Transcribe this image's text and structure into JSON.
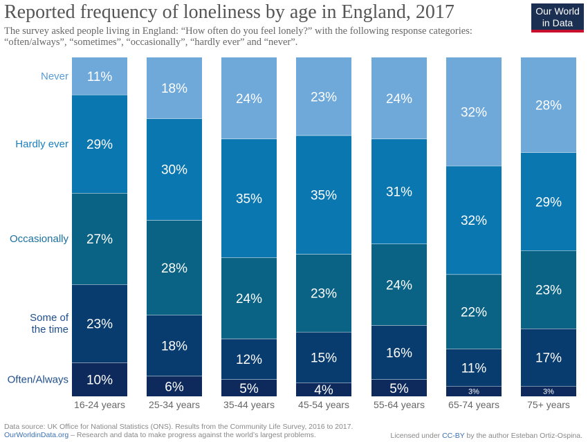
{
  "title": "Reported frequency of loneliness by age in England, 2017",
  "subtitle": "The survey asked people living in England: “How often do you feel lonely?” with the following response categories: “often/always”, “sometimes”, “occasionally”, “hardly ever” and “never”.",
  "logo": {
    "line1": "Our World",
    "line2": "in Data"
  },
  "footer": {
    "source": "Data source: UK Office for National Statistics (ONS). Results from the Community Life Survey, 2016 to 2017.",
    "site": "OurWorldinData.org",
    "tagline": " – Research and data to make progress against the world’s largest problems.",
    "license_prefix": "Licensed under ",
    "license": "CC-BY",
    "license_suffix": " by the author Esteban Ortiz-Ospina."
  },
  "chart_data": {
    "type": "bar",
    "stacked": true,
    "percent": true,
    "categories": [
      "16-24 years",
      "25-34 years",
      "35-44 years",
      "45-54 years",
      "55-64 years",
      "65-74 years",
      "75+ years"
    ],
    "series": [
      {
        "name": "Often/Always",
        "values": [
          10,
          6,
          5,
          4,
          5,
          3,
          3
        ],
        "color": "#0e2a5c",
        "label_color": "#1f4e8c"
      },
      {
        "name": "Some of the time",
        "values": [
          23,
          18,
          12,
          15,
          16,
          11,
          17
        ],
        "color": "#083b6e",
        "label_color": "#1f4e8c"
      },
      {
        "name": "Occasionally",
        "values": [
          27,
          28,
          24,
          23,
          24,
          22,
          23
        ],
        "color": "#0a6384",
        "label_color": "#1a6fa0"
      },
      {
        "name": "Hardly ever",
        "values": [
          29,
          30,
          35,
          35,
          31,
          32,
          29
        ],
        "color": "#0b77b1",
        "label_color": "#1a7fbf"
      },
      {
        "name": "Never",
        "values": [
          11,
          18,
          24,
          23,
          24,
          32,
          28
        ],
        "color": "#6fa9da",
        "label_color": "#5b9bd5"
      }
    ],
    "value_labels": [
      [
        "10%",
        "23%",
        "27%",
        "29%",
        "11%"
      ],
      [
        "6%",
        "18%",
        "28%",
        "30%",
        "18%"
      ],
      [
        "5%",
        "12%",
        "24%",
        "35%",
        "24%"
      ],
      [
        "4%",
        "15%",
        "23%",
        "35%",
        "23%"
      ],
      [
        "5%",
        "16%",
        "24%",
        "31%",
        "24%"
      ],
      [
        "3%",
        "11%",
        "22%",
        "32%",
        "32%"
      ],
      [
        "3%",
        "17%",
        "23%",
        "29%",
        "28%"
      ]
    ],
    "legend_labels": [
      [
        "Often/Always"
      ],
      [
        "Some of",
        "the time"
      ],
      [
        "Occasionally"
      ],
      [
        "Hardly ever"
      ],
      [
        "Never"
      ]
    ],
    "legend_placement": "left",
    "ylim": [
      0,
      100
    ],
    "grid": false
  }
}
